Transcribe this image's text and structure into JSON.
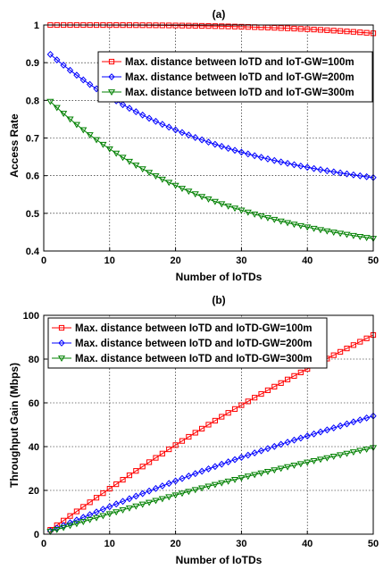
{
  "chart_data": [
    {
      "type": "line",
      "title": "(a)",
      "xlabel": "Number of IoTDs",
      "ylabel": "Access Rate",
      "xlim": [
        0,
        50
      ],
      "ylim": [
        0.4,
        1.0
      ],
      "xticks": [
        0,
        10,
        20,
        30,
        40,
        50
      ],
      "yticks": [
        0.4,
        0.5,
        0.6,
        0.7,
        0.8,
        0.9,
        1.0
      ],
      "ytick_labels": [
        "0.4",
        "0.5",
        "0.6",
        "0.7",
        "0.8",
        "0.9",
        "1"
      ],
      "grid": true,
      "legend_position": "top-right",
      "series": [
        {
          "name": "Max. distance between IoTD and IoT-GW=100m",
          "color": "#ff0000",
          "marker": "square",
          "x_start": 1,
          "x_end": 50,
          "y_start": 1.0,
          "y_end": 0.978,
          "shape": "flat-decline"
        },
        {
          "name": "Max. distance between IoTD and IoT-GW=200m",
          "color": "#0000ff",
          "marker": "diamond",
          "x_start": 1,
          "x_end": 50,
          "y_start": 0.922,
          "y_end": 0.595,
          "shape": "exp-decay"
        },
        {
          "name": "Max. distance between IoTD and IoT-GW=300m",
          "color": "#008000",
          "marker": "triangle-down",
          "x_start": 1,
          "x_end": 50,
          "y_start": 0.797,
          "y_end": 0.433,
          "shape": "exp-decay"
        }
      ],
      "samples": [
        {
          "series": 1,
          "x": 10,
          "y": 0.82
        },
        {
          "series": 1,
          "x": 20,
          "y": 0.72
        },
        {
          "series": 1,
          "x": 30,
          "y": 0.662
        },
        {
          "series": 1,
          "x": 40,
          "y": 0.622
        },
        {
          "series": 2,
          "x": 10,
          "y": 0.615
        },
        {
          "series": 2,
          "x": 20,
          "y": 0.525
        },
        {
          "series": 2,
          "x": 30,
          "y": 0.483
        },
        {
          "series": 2,
          "x": 40,
          "y": 0.452
        }
      ]
    },
    {
      "type": "line",
      "title": "(b)",
      "xlabel": "Number of IoTDs",
      "ylabel": "Throughput Gain (Mbps)",
      "xlim": [
        0,
        50
      ],
      "ylim": [
        0,
        100
      ],
      "xticks": [
        0,
        10,
        20,
        30,
        40,
        50
      ],
      "yticks": [
        0,
        20,
        40,
        60,
        80,
        100
      ],
      "ytick_labels": [
        "0",
        "20",
        "40",
        "60",
        "80",
        "100"
      ],
      "grid": true,
      "legend_position": "top-left",
      "series": [
        {
          "name": "Max. distance between IoTD and IoTD-GW=100m",
          "color": "#ff0000",
          "marker": "square",
          "x_start": 1,
          "x_end": 50,
          "y_start": 2.0,
          "y_end": 91.0,
          "shape": "near-linear"
        },
        {
          "name": "Max. distance between IoTD and IoTD-GW=200m",
          "color": "#0000ff",
          "marker": "diamond",
          "x_start": 1,
          "x_end": 50,
          "y_start": 1.5,
          "y_end": 54.0,
          "shape": "near-linear"
        },
        {
          "name": "Max. distance between IoTD and IoTD-GW=300m",
          "color": "#008000",
          "marker": "triangle-down",
          "x_start": 1,
          "x_end": 50,
          "y_start": 1.2,
          "y_end": 39.5,
          "shape": "near-linear"
        }
      ]
    }
  ]
}
